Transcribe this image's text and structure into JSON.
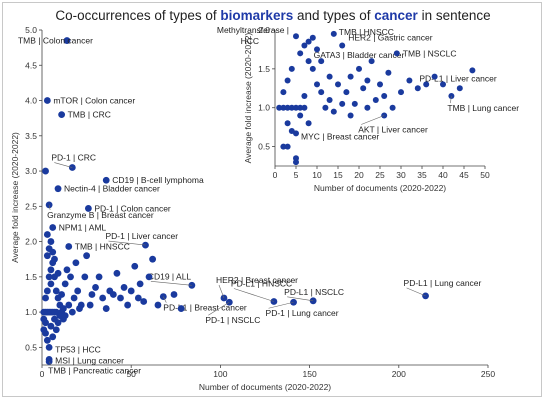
{
  "title": {
    "prefix": "Co-occurrences of types of ",
    "word1": "biomarkers",
    "middle": " and types of ",
    "word2": "cancer",
    "suffix": " in sentence",
    "word1_color": "#1f3aa8",
    "word2_color": "#1f3aa8"
  },
  "marker_color": "#1a3a9e",
  "chart_data": [
    {
      "type": "scatter",
      "xlabel": "Number of documents (2020-2022)",
      "ylabel": "Average fold increase (2020-2022)",
      "xlim": [
        0,
        250
      ],
      "ylim": [
        0.25,
        5.0
      ],
      "xticks": [
        0,
        50,
        100,
        150,
        200,
        250
      ],
      "yticks": [
        0.5,
        1.0,
        1.5,
        2.0,
        2.5,
        3.0,
        3.5,
        4.0,
        4.5,
        5.0
      ],
      "points": [
        {
          "x": 14,
          "y": 4.85,
          "label": "TMB | Colon cancer"
        },
        {
          "x": 3,
          "y": 4.0,
          "label": "mTOR | Colon cancer"
        },
        {
          "x": 11,
          "y": 3.8,
          "label": "TMB | CRC"
        },
        {
          "x": 2,
          "y": 3.0
        },
        {
          "x": 17,
          "y": 3.05,
          "label": "PD-1 | CRC"
        },
        {
          "x": 36,
          "y": 2.87,
          "label": "CD19 | B-cell lymphoma"
        },
        {
          "x": 9,
          "y": 2.75,
          "label": "Nectin-4 | Bladder cancer"
        },
        {
          "x": 4,
          "y": 2.52,
          "label": "Granzyme B | Breast cancer"
        },
        {
          "x": 26,
          "y": 2.47,
          "label": "PD-1 | Colon cancer"
        },
        {
          "x": 6,
          "y": 2.2,
          "label": "NPM1 | AML"
        },
        {
          "x": 58,
          "y": 1.95,
          "label": "PD-1 | Liver cancer"
        },
        {
          "x": 15,
          "y": 1.93,
          "label": "TMB | HNSCC"
        },
        {
          "x": 84,
          "y": 1.38,
          "label": "CD19 | ALL"
        },
        {
          "x": 102,
          "y": 1.2,
          "label": "HER2 | Breast cancer"
        },
        {
          "x": 68,
          "y": 1.22,
          "label": "PD-L1 | Breast cancer"
        },
        {
          "x": 105,
          "y": 1.14,
          "label": "PD-1 | NSCLC"
        },
        {
          "x": 130,
          "y": 1.15,
          "label": "PD-L1 | HNSCC"
        },
        {
          "x": 141,
          "y": 1.14,
          "label": "PD-1 | Lung cancer"
        },
        {
          "x": 152,
          "y": 1.16,
          "label": "PD-L1 | NSCLC"
        },
        {
          "x": 215,
          "y": 1.23,
          "label": "PD-L1 | Lung cancer"
        },
        {
          "x": 4,
          "y": 0.5,
          "label": "TP53 | HCC"
        },
        {
          "x": 4,
          "y": 0.33,
          "label": "MSI | Lung cancer"
        },
        {
          "x": 4,
          "y": 0.3,
          "label": "TMB | Pancreatic cancer"
        },
        {
          "x": 2,
          "y": 0.7
        },
        {
          "x": 1,
          "y": 0.75
        },
        {
          "x": 2,
          "y": 1.0
        },
        {
          "x": 3,
          "y": 1.0
        },
        {
          "x": 4,
          "y": 1.0
        },
        {
          "x": 5,
          "y": 1.0
        },
        {
          "x": 6,
          "y": 1.0
        },
        {
          "x": 7,
          "y": 1.0
        },
        {
          "x": 1,
          "y": 1.0
        },
        {
          "x": 8,
          "y": 1.0
        },
        {
          "x": 2,
          "y": 1.2
        },
        {
          "x": 3,
          "y": 1.3
        },
        {
          "x": 4,
          "y": 1.5
        },
        {
          "x": 5,
          "y": 1.6
        },
        {
          "x": 6,
          "y": 1.7
        },
        {
          "x": 3,
          "y": 1.8
        },
        {
          "x": 4,
          "y": 1.9
        },
        {
          "x": 5,
          "y": 2.0
        },
        {
          "x": 6,
          "y": 1.85
        },
        {
          "x": 7,
          "y": 1.5
        },
        {
          "x": 8,
          "y": 1.3
        },
        {
          "x": 9,
          "y": 1.2
        },
        {
          "x": 10,
          "y": 1.1
        },
        {
          "x": 11,
          "y": 1.0
        },
        {
          "x": 12,
          "y": 1.05
        },
        {
          "x": 13,
          "y": 1.4
        },
        {
          "x": 14,
          "y": 1.6
        },
        {
          "x": 16,
          "y": 1.5
        },
        {
          "x": 18,
          "y": 1.2
        },
        {
          "x": 19,
          "y": 1.7
        },
        {
          "x": 20,
          "y": 1.3
        },
        {
          "x": 22,
          "y": 1.1
        },
        {
          "x": 24,
          "y": 1.5
        },
        {
          "x": 25,
          "y": 1.8
        },
        {
          "x": 28,
          "y": 1.25
        },
        {
          "x": 30,
          "y": 1.35
        },
        {
          "x": 32,
          "y": 1.5
        },
        {
          "x": 34,
          "y": 1.2
        },
        {
          "x": 36,
          "y": 1.05
        },
        {
          "x": 38,
          "y": 1.3
        },
        {
          "x": 40,
          "y": 1.25
        },
        {
          "x": 42,
          "y": 1.55
        },
        {
          "x": 44,
          "y": 1.2
        },
        {
          "x": 46,
          "y": 1.35
        },
        {
          "x": 48,
          "y": 1.1
        },
        {
          "x": 50,
          "y": 1.3
        },
        {
          "x": 52,
          "y": 1.65
        },
        {
          "x": 54,
          "y": 1.2
        },
        {
          "x": 55,
          "y": 1.4
        },
        {
          "x": 57,
          "y": 1.15
        },
        {
          "x": 60,
          "y": 1.5
        },
        {
          "x": 62,
          "y": 1.75
        },
        {
          "x": 65,
          "y": 1.1
        },
        {
          "x": 74,
          "y": 1.25
        },
        {
          "x": 78,
          "y": 1.05
        },
        {
          "x": 1,
          "y": 0.9
        },
        {
          "x": 2,
          "y": 0.85
        },
        {
          "x": 3,
          "y": 0.6
        },
        {
          "x": 5,
          "y": 0.8
        },
        {
          "x": 6,
          "y": 0.65
        },
        {
          "x": 7,
          "y": 0.9
        },
        {
          "x": 8,
          "y": 0.75
        },
        {
          "x": 9,
          "y": 0.85
        },
        {
          "x": 10,
          "y": 0.95
        },
        {
          "x": 12,
          "y": 0.9
        },
        {
          "x": 15,
          "y": 1.1
        },
        {
          "x": 17,
          "y": 1.0
        },
        {
          "x": 21,
          "y": 1.05
        },
        {
          "x": 27,
          "y": 1.1
        },
        {
          "x": 3,
          "y": 2.1
        },
        {
          "x": 5,
          "y": 1.4
        },
        {
          "x": 7,
          "y": 1.75
        },
        {
          "x": 9,
          "y": 1.55
        },
        {
          "x": 11,
          "y": 1.25
        },
        {
          "x": 13,
          "y": 0.95
        }
      ]
    },
    {
      "type": "scatter",
      "xlabel": "Number of documents (2020-2022)",
      "ylabel": "Average fold increase (2020-2022)",
      "xlim": [
        0,
        50
      ],
      "ylim": [
        0.25,
        2.0
      ],
      "xticks": [
        0,
        5,
        10,
        15,
        20,
        25,
        30,
        35,
        40,
        45,
        50
      ],
      "yticks": [
        0.5,
        1.0,
        1.5,
        2.0
      ],
      "points": [
        {
          "x": 5,
          "y": 1.92,
          "label": "Methyltransferase | HCC"
        },
        {
          "x": 14,
          "y": 1.95,
          "label": "TMB | HNSCC"
        },
        {
          "x": 16,
          "y": 1.8,
          "label": "HER2 | Gastric cancer"
        },
        {
          "x": 8,
          "y": 1.6,
          "label": "GATA3 | Bladder cancer"
        },
        {
          "x": 29,
          "y": 1.7,
          "label": "TMB | NSCLC"
        },
        {
          "x": 47,
          "y": 1.48,
          "label": "PD-L1 | Liver cancer"
        },
        {
          "x": 42,
          "y": 1.15,
          "label": "TMB | Lung cancer"
        },
        {
          "x": 26,
          "y": 0.9,
          "label": "AKT | Liver cancer"
        },
        {
          "x": 5,
          "y": 0.67,
          "label": "MYC | Breast cancer"
        },
        {
          "x": 2,
          "y": 1.0
        },
        {
          "x": 3,
          "y": 1.0
        },
        {
          "x": 4,
          "y": 1.0
        },
        {
          "x": 5,
          "y": 1.0
        },
        {
          "x": 6,
          "y": 1.0
        },
        {
          "x": 7,
          "y": 1.0
        },
        {
          "x": 1,
          "y": 1.0
        },
        {
          "x": 2,
          "y": 1.2
        },
        {
          "x": 3,
          "y": 1.35
        },
        {
          "x": 4,
          "y": 1.5
        },
        {
          "x": 6,
          "y": 1.7
        },
        {
          "x": 7,
          "y": 1.8
        },
        {
          "x": 8,
          "y": 1.85
        },
        {
          "x": 9,
          "y": 1.9
        },
        {
          "x": 10,
          "y": 1.75
        },
        {
          "x": 9,
          "y": 1.5
        },
        {
          "x": 10,
          "y": 1.3
        },
        {
          "x": 11,
          "y": 1.2
        },
        {
          "x": 12,
          "y": 1.0
        },
        {
          "x": 13,
          "y": 1.1
        },
        {
          "x": 15,
          "y": 1.3
        },
        {
          "x": 17,
          "y": 1.2
        },
        {
          "x": 18,
          "y": 1.4
        },
        {
          "x": 19,
          "y": 1.05
        },
        {
          "x": 20,
          "y": 1.5
        },
        {
          "x": 21,
          "y": 1.25
        },
        {
          "x": 22,
          "y": 1.35
        },
        {
          "x": 23,
          "y": 1.6
        },
        {
          "x": 24,
          "y": 1.1
        },
        {
          "x": 25,
          "y": 1.3
        },
        {
          "x": 27,
          "y": 1.45
        },
        {
          "x": 28,
          "y": 1.0
        },
        {
          "x": 30,
          "y": 1.2
        },
        {
          "x": 32,
          "y": 1.35
        },
        {
          "x": 34,
          "y": 1.25
        },
        {
          "x": 36,
          "y": 1.3
        },
        {
          "x": 38,
          "y": 1.4
        },
        {
          "x": 40,
          "y": 1.3
        },
        {
          "x": 44,
          "y": 1.25
        },
        {
          "x": 3,
          "y": 0.8
        },
        {
          "x": 4,
          "y": 0.7
        },
        {
          "x": 2,
          "y": 0.5
        },
        {
          "x": 3,
          "y": 0.5
        },
        {
          "x": 5,
          "y": 0.35
        },
        {
          "x": 5,
          "y": 0.3
        },
        {
          "x": 6,
          "y": 0.9
        },
        {
          "x": 7,
          "y": 1.15
        },
        {
          "x": 8,
          "y": 0.8
        },
        {
          "x": 11,
          "y": 1.6
        },
        {
          "x": 13,
          "y": 1.4
        },
        {
          "x": 14,
          "y": 0.95
        },
        {
          "x": 16,
          "y": 1.05
        },
        {
          "x": 18,
          "y": 0.9
        },
        {
          "x": 22,
          "y": 1.0
        },
        {
          "x": 26,
          "y": 1.15
        }
      ]
    }
  ]
}
